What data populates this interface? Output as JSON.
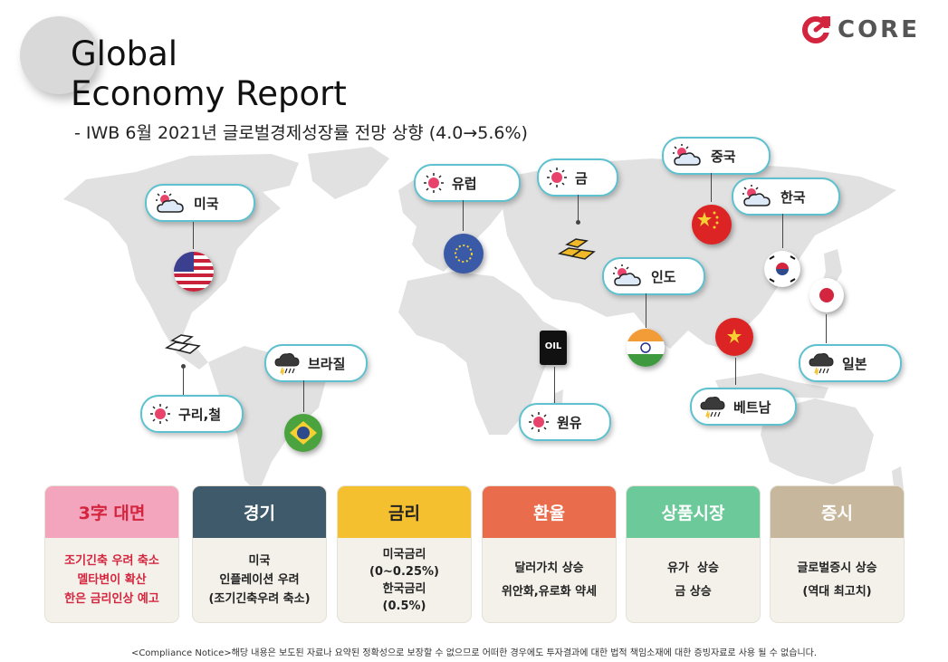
{
  "header": {
    "title_line1": "Global",
    "title_line2": "Economy Report",
    "subtitle": "- IWB 6월 2021년 글로벌경제성장률 전망 상향 (4.0→5.6%)",
    "logo_text": "CORE",
    "logo_color": "#d3253e"
  },
  "locations": {
    "usa": {
      "label": "미국",
      "weather": "partly-cloudy"
    },
    "europe": {
      "label": "유럽",
      "weather": "sunny"
    },
    "gold": {
      "label": "금",
      "weather": "sunny"
    },
    "china": {
      "label": "중국",
      "weather": "partly-cloudy"
    },
    "korea": {
      "label": "한국",
      "weather": "partly-cloudy"
    },
    "india": {
      "label": "인도",
      "weather": "partly-cloudy"
    },
    "brazil": {
      "label": "브라질",
      "weather": "storm"
    },
    "copper": {
      "label": "구리,철",
      "weather": "sunny"
    },
    "oil": {
      "label": "원유",
      "weather": "sunny",
      "barrel_text": "OIL"
    },
    "japan": {
      "label": "일본",
      "weather": "storm"
    },
    "vietnam": {
      "label": "베트남",
      "weather": "storm"
    }
  },
  "cards": [
    {
      "title": "3字 대면",
      "head_color": "#f3a5bd",
      "title_color": "#d3253e",
      "lines": [
        "조기긴축 우려 축소",
        "멜타변이 확산",
        "한은 금리인상 예고"
      ]
    },
    {
      "title": "경기",
      "head_color": "#3e5a6b",
      "title_color": "#ffffff",
      "lines": [
        "미국",
        "인플레이션 우려",
        "(조기긴축우려 축소)"
      ]
    },
    {
      "title": "금리",
      "head_color": "#f4c02f",
      "title_color": "#222222",
      "lines": [
        "미국금리",
        "(0~0.25%)",
        "한국금리",
        "(0.5%)"
      ]
    },
    {
      "title": "환율",
      "head_color": "#e96d4c",
      "title_color": "#ffffff",
      "lines": [
        "달러가치 상승",
        "위안화,유로화 약세"
      ]
    },
    {
      "title": "상품시장",
      "head_color": "#6cc99a",
      "title_color": "#ffffff",
      "lines": [
        "유가  상승",
        "금 상승"
      ]
    },
    {
      "title": "증시",
      "head_color": "#c7b79c",
      "title_color": "#ffffff",
      "lines": [
        "글로벌증시 상승",
        "(역대 최고치)"
      ]
    }
  ],
  "notice": "<Compliance Notice>해당 내용은 보도된 자료나 요약된 정확성으로 보장할 수 없으므로 어떠한 경우에도 투자결과에 대한 법적 책임소재에 대한 증빙자료로 사용 될 수 없습니다."
}
